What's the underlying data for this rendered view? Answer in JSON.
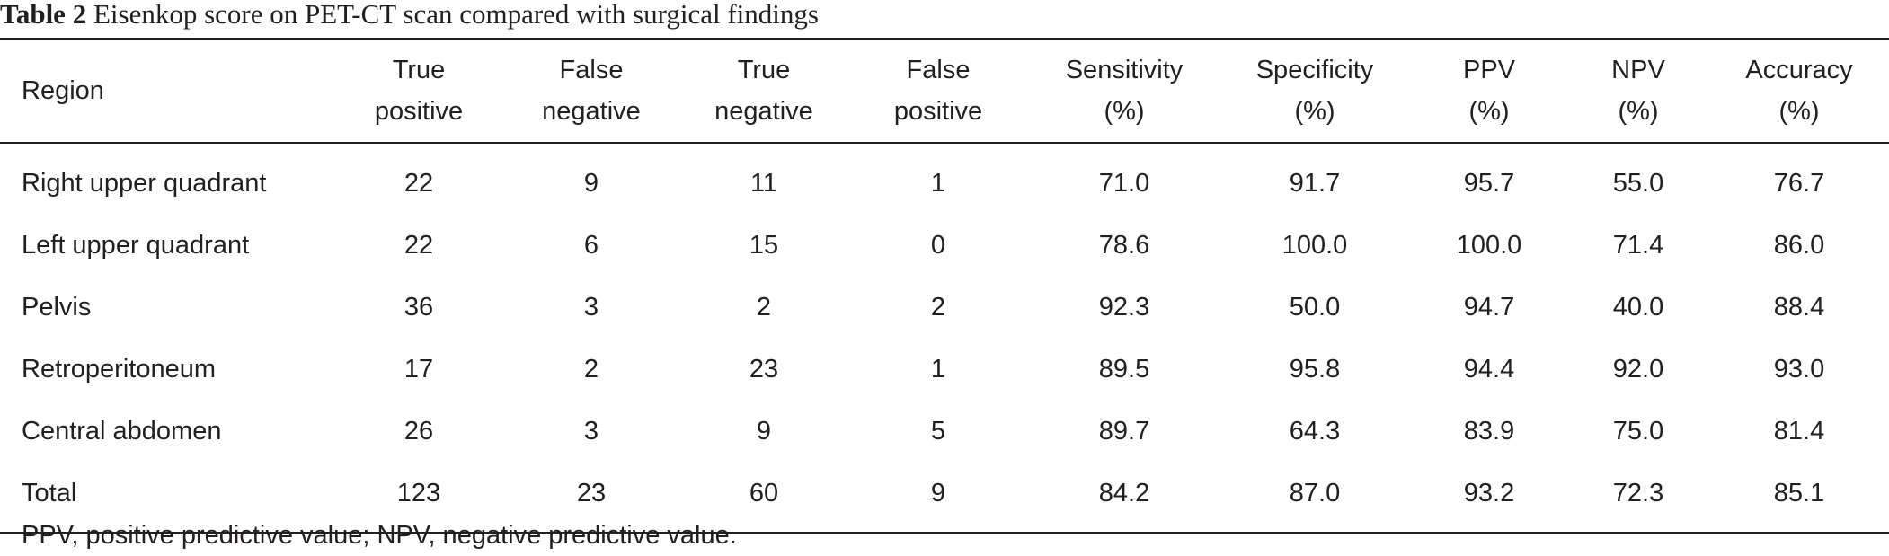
{
  "caption": {
    "label": "Table 2",
    "text": " Eisenkop score on PET-CT scan compared with surgical findings"
  },
  "table": {
    "columns": [
      {
        "line1": "Region",
        "line2": ""
      },
      {
        "line1": "True",
        "line2": "positive"
      },
      {
        "line1": "False",
        "line2": "negative"
      },
      {
        "line1": "True",
        "line2": "negative"
      },
      {
        "line1": "False",
        "line2": "positive"
      },
      {
        "line1": "Sensitivity",
        "line2": "(%)"
      },
      {
        "line1": "Specificity",
        "line2": "(%)"
      },
      {
        "line1": "PPV",
        "line2": "(%)"
      },
      {
        "line1": "NPV",
        "line2": "(%)"
      },
      {
        "line1": "Accuracy",
        "line2": "(%)"
      }
    ],
    "rows": [
      [
        "Right upper quadrant",
        "22",
        "9",
        "11",
        "1",
        "71.0",
        "91.7",
        "95.7",
        "55.0",
        "76.7"
      ],
      [
        "Left upper quadrant",
        "22",
        "6",
        "15",
        "0",
        "78.6",
        "100.0",
        "100.0",
        "71.4",
        "86.0"
      ],
      [
        "Pelvis",
        "36",
        "3",
        "2",
        "2",
        "92.3",
        "50.0",
        "94.7",
        "40.0",
        "88.4"
      ],
      [
        "Retroperitoneum",
        "17",
        "2",
        "23",
        "1",
        "89.5",
        "95.8",
        "94.4",
        "92.0",
        "93.0"
      ],
      [
        "Central abdomen",
        "26",
        "3",
        "9",
        "5",
        "89.7",
        "64.3",
        "83.9",
        "75.0",
        "81.4"
      ],
      [
        "Total",
        "123",
        "23",
        "60",
        "9",
        "84.2",
        "87.0",
        "93.2",
        "72.3",
        "85.1"
      ]
    ]
  },
  "footnote": "PPV, positive predictive value; NPV, negative predictive value."
}
